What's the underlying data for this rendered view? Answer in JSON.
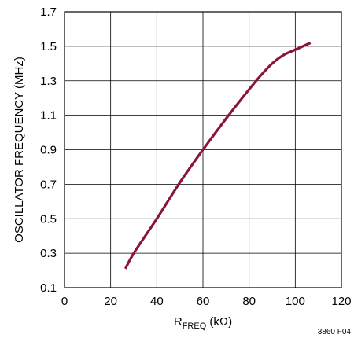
{
  "chart_data": {
    "type": "line",
    "xlabel_main": "R",
    "xlabel_sub": "FREQ",
    "xlabel_unit": " (kΩ)",
    "ylabel": "OSCILLATOR FREQUENCY (MHz)",
    "xlim": [
      0,
      120
    ],
    "ylim": [
      0.1,
      1.7
    ],
    "x_ticks": [
      0,
      20,
      40,
      60,
      80,
      100,
      120
    ],
    "x_tick_labels": [
      "0",
      "20",
      "40",
      "60",
      "80",
      "100",
      "120"
    ],
    "y_ticks": [
      0.1,
      0.3,
      0.5,
      0.7,
      0.9,
      1.1,
      1.3,
      1.5,
      1.7
    ],
    "y_tick_labels": [
      "0.1",
      "0.3",
      "0.5",
      "0.7",
      "0.9",
      "1.1",
      "1.3",
      "1.5",
      "1.7"
    ],
    "grid": true,
    "series": [
      {
        "color": "#8b1538",
        "x": [
          26.4,
          30,
          40,
          50,
          60,
          70,
          80,
          85,
          90,
          95,
          100,
          106.6
        ],
        "y": [
          0.21,
          0.3,
          0.5,
          0.71,
          0.9,
          1.08,
          1.25,
          1.33,
          1.4,
          1.45,
          1.48,
          1.52
        ]
      }
    ],
    "figure_id": "3860 F04"
  }
}
